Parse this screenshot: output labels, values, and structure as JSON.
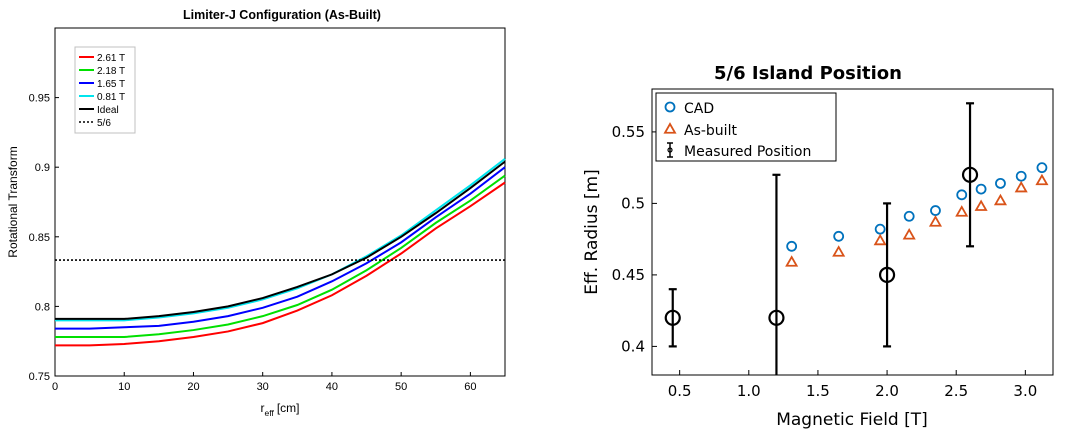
{
  "chart_data": [
    {
      "type": "line",
      "title": "Limiter-J Configuration (As-Built)",
      "xlabel_main": "r",
      "xlabel_sub": "eff",
      "xlabel_unit": "[cm]",
      "ylabel": "Rotational Transform",
      "xlim": [
        0,
        65
      ],
      "ylim": [
        0.75,
        1.0
      ],
      "xticks": [
        0,
        10,
        20,
        30,
        40,
        50,
        60
      ],
      "yticks": [
        0.75,
        0.8,
        0.85,
        0.9,
        0.95
      ],
      "ytick_labels": [
        "0.75",
        "0.8",
        "0.85",
        "0.9",
        "0.95"
      ],
      "legend_position": "top-left",
      "grid": false,
      "x": [
        0,
        5,
        10,
        15,
        20,
        25,
        30,
        35,
        40,
        45,
        50,
        55,
        60,
        65
      ],
      "series": [
        {
          "name": "2.61 T",
          "color": "#ff0000",
          "style": "solid",
          "values": [
            0.772,
            0.772,
            0.773,
            0.775,
            0.778,
            0.782,
            0.788,
            0.797,
            0.808,
            0.822,
            0.838,
            0.856,
            0.872,
            0.889
          ]
        },
        {
          "name": "2.18 T",
          "color": "#00e000",
          "style": "solid",
          "values": [
            0.778,
            0.778,
            0.778,
            0.78,
            0.783,
            0.787,
            0.793,
            0.801,
            0.812,
            0.826,
            0.842,
            0.86,
            0.876,
            0.894
          ]
        },
        {
          "name": "1.65 T",
          "color": "#0000ff",
          "style": "solid",
          "values": [
            0.784,
            0.784,
            0.785,
            0.786,
            0.789,
            0.793,
            0.799,
            0.807,
            0.818,
            0.831,
            0.846,
            0.864,
            0.881,
            0.9
          ]
        },
        {
          "name": "0.81 T",
          "color": "#00e5ee",
          "style": "solid",
          "values": [
            0.79,
            0.79,
            0.79,
            0.792,
            0.795,
            0.799,
            0.805,
            0.813,
            0.823,
            0.836,
            0.851,
            0.869,
            0.887,
            0.906
          ]
        },
        {
          "name": "Ideal",
          "color": "#000000",
          "style": "solid",
          "values": [
            0.791,
            0.791,
            0.791,
            0.793,
            0.796,
            0.8,
            0.806,
            0.814,
            0.823,
            0.835,
            0.85,
            0.867,
            0.885,
            0.904
          ]
        },
        {
          "name": "5/6",
          "color": "#000000",
          "style": "dotted",
          "values": [
            0.8333,
            0.8333,
            0.8333,
            0.8333,
            0.8333,
            0.8333,
            0.8333,
            0.8333,
            0.8333,
            0.8333,
            0.8333,
            0.8333,
            0.8333,
            0.8333
          ]
        }
      ]
    },
    {
      "type": "scatter",
      "title": "5/6 Island Position",
      "xlabel": "Magnetic Field [T]",
      "ylabel": "Eff. Radius [m]",
      "xlim": [
        0.3,
        3.2
      ],
      "ylim": [
        0.38,
        0.58
      ],
      "xticks": [
        0.5,
        1.0,
        1.5,
        2.0,
        2.5,
        3.0
      ],
      "xtick_labels": [
        "0.5",
        "1.0",
        "1.5",
        "2.0",
        "2.5",
        "3.0"
      ],
      "yticks": [
        0.4,
        0.45,
        0.5,
        0.55
      ],
      "ytick_labels": [
        "0.4",
        "0.45",
        "0.5",
        "0.55"
      ],
      "legend_position": "top-left",
      "grid": false,
      "series": [
        {
          "name": "CAD",
          "marker": "circle",
          "color": "#0072bd",
          "x": [
            1.31,
            1.65,
            1.95,
            2.16,
            2.35,
            2.54,
            2.68,
            2.82,
            2.97,
            3.12
          ],
          "y": [
            0.47,
            0.477,
            0.482,
            0.491,
            0.495,
            0.506,
            0.51,
            0.514,
            0.519,
            0.525
          ]
        },
        {
          "name": "As-built",
          "marker": "triangle",
          "color": "#d95319",
          "x": [
            1.31,
            1.65,
            1.95,
            2.16,
            2.35,
            2.54,
            2.68,
            2.82,
            2.97,
            3.12
          ],
          "y": [
            0.459,
            0.466,
            0.474,
            0.478,
            0.487,
            0.494,
            0.498,
            0.502,
            0.511,
            0.516
          ]
        },
        {
          "name": "Measured Position",
          "marker": "circle-errorbar",
          "color": "#000000",
          "x": [
            0.45,
            1.2,
            2.0,
            2.6
          ],
          "y": [
            0.42,
            0.42,
            0.45,
            0.52
          ],
          "err_low": [
            0.4,
            0.3,
            0.4,
            0.47
          ],
          "err_high": [
            0.44,
            0.52,
            0.5,
            0.57
          ]
        }
      ]
    }
  ]
}
